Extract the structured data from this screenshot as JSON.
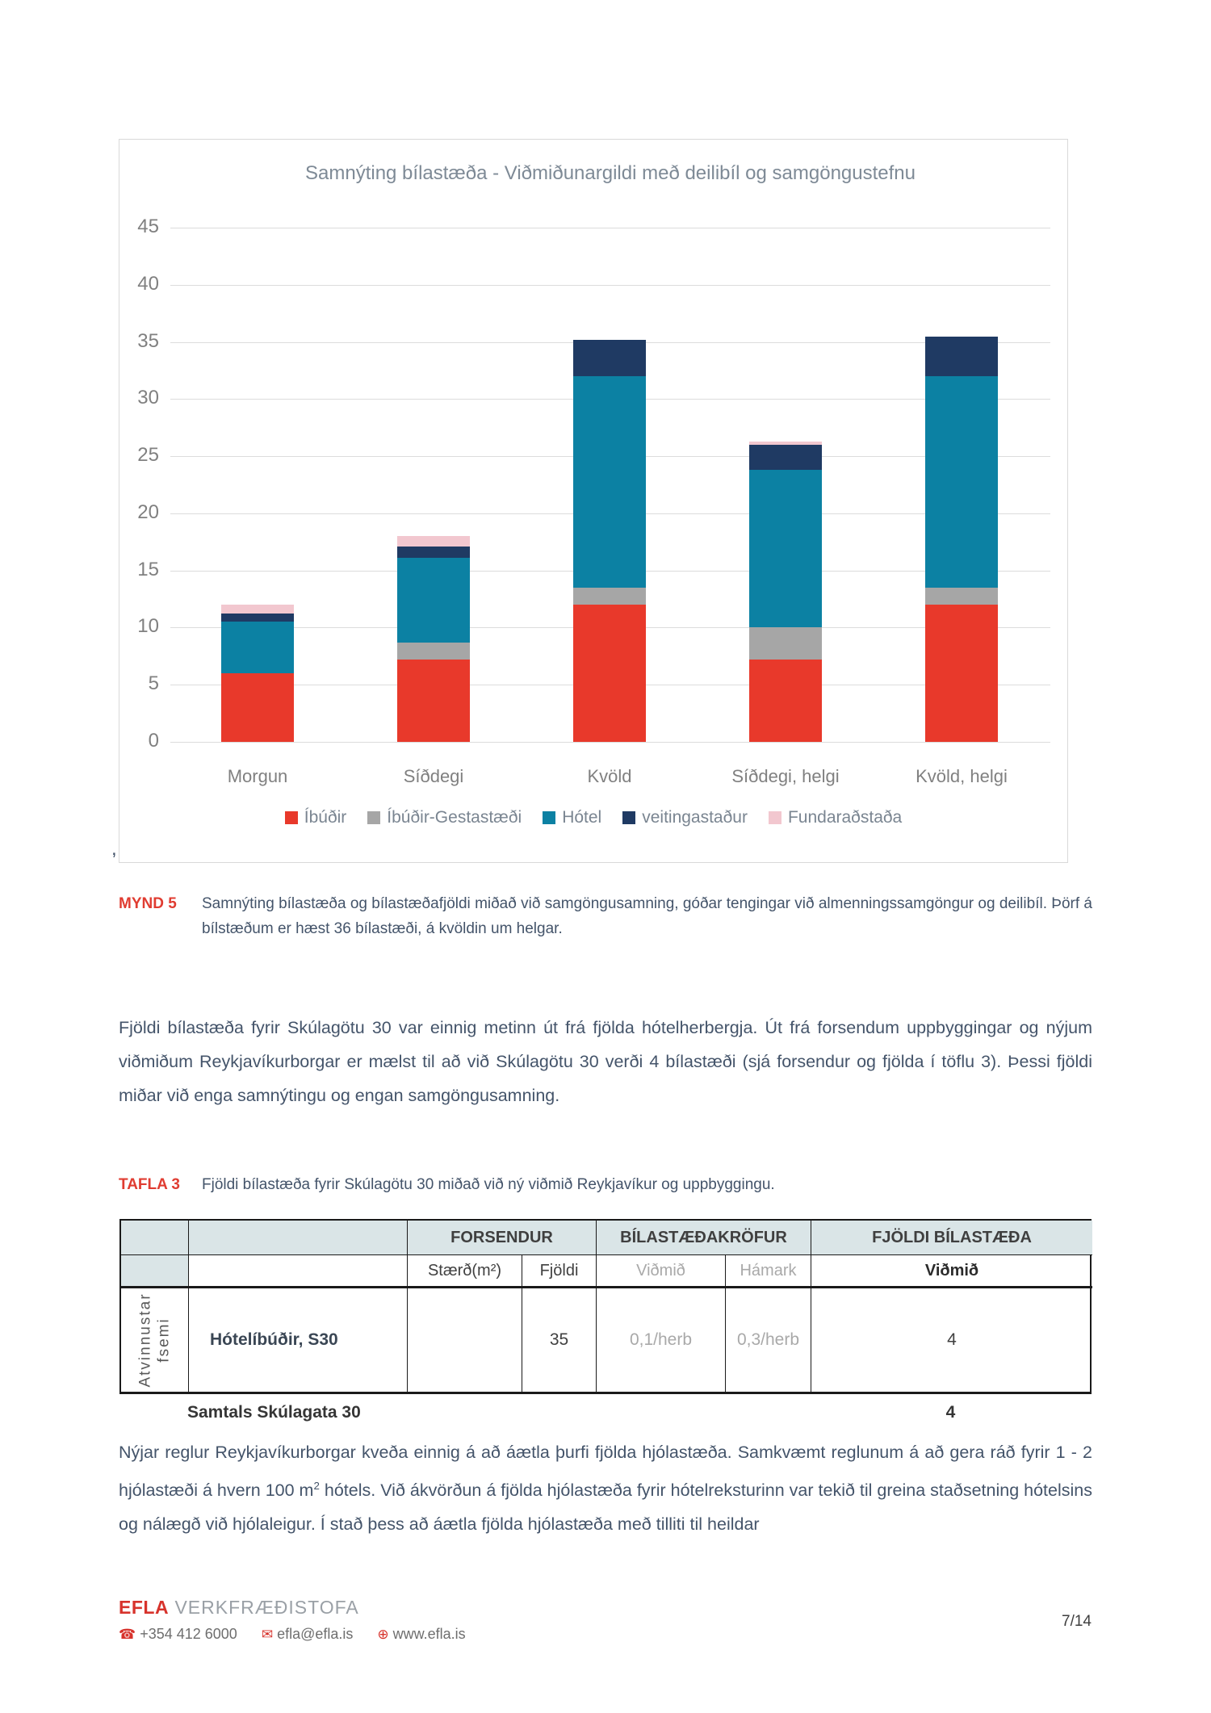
{
  "chart_data": {
    "type": "bar",
    "stacked": true,
    "title": "Samnýting bílastæða - Viðmiðunargildi með deilibíl og samgöngustefnu",
    "categories": [
      "Morgun",
      "Síðdegi",
      "Kvöld",
      "Síðdegi, helgi",
      "Kvöld, helgi"
    ],
    "series": [
      {
        "name": "Íbúðir",
        "color": "#E8392B",
        "values": [
          6.0,
          7.2,
          12.0,
          7.2,
          12.0
        ]
      },
      {
        "name": "Íbúðir-Gestastæði",
        "color": "#A6A6A6",
        "values": [
          0.0,
          1.5,
          1.5,
          2.8,
          1.5
        ]
      },
      {
        "name": "Hótel",
        "color": "#0C81A3",
        "values": [
          4.5,
          7.4,
          18.5,
          13.8,
          18.5
        ]
      },
      {
        "name": "veitingastaður",
        "color": "#1F3A63",
        "values": [
          0.7,
          1.0,
          3.2,
          2.2,
          3.5
        ]
      },
      {
        "name": "Fundaraðstaða",
        "color": "#F2C7CF",
        "values": [
          0.8,
          0.9,
          0.0,
          0.3,
          0.0
        ]
      }
    ],
    "totals": [
      12.0,
      18.0,
      35.2,
      26.3,
      35.5
    ],
    "xlabel": "",
    "ylabel": "",
    "ylim": [
      0,
      45
    ],
    "ytick_step": 5,
    "grid": true,
    "legend_position": "bottom"
  },
  "stray_comma": ",",
  "figure_caption": {
    "label": "MYND 5",
    "text": "Samnýting bílastæða og bílastæðafjöldi miðað við samgöngusamning, góðar tengingar við almenningssamgöngur og deilibíl. Þörf á bílstæðum er hæst 36 bílastæði, á kvöldin um helgar."
  },
  "paragraph1": "Fjöldi bílastæða fyrir Skúlagötu 30 var einnig metinn út frá fjölda hótelherbergja. Út frá forsendum uppbyggingar og nýjum viðmiðum Reykjavíkurborgar er mælst til  að við Skúlagötu 30 verði 4 bílastæði (sjá forsendur og fjölda í töflu 3). Þessi fjöldi miðar við enga samnýtingu og engan samgöngusamning.",
  "table_caption": {
    "label": "TAFLA 3",
    "text": "Fjöldi bílastæða fyrir Skúlagötu 30 miðað við ný viðmið Reykjavíkur og uppbyggingu."
  },
  "table": {
    "group_headers": {
      "forsendur": "FORSENDUR",
      "bilastaedakrofur": "BÍLASTÆÐAKRÖFUR",
      "fjoldi_bilastaeda": "FJÖLDI BÍLASTÆÐA"
    },
    "sub_headers": {
      "staerd": "Stærð(m²)",
      "fjoldi": "Fjöldi",
      "vidmid": "Viðmið",
      "hamark": "Hámark",
      "vidmid2": "Viðmið"
    },
    "row_group_label_line1": "Atvinnustar",
    "row_group_label_line2": "fsemi",
    "rows": [
      {
        "name": "Hótelíbúðir, S30",
        "staerd": "",
        "fjoldi": "35",
        "vidmid": "0,1/herb",
        "hamark": "0,3/herb",
        "fjoldi_bilastaeda": "4"
      }
    ],
    "total_label": "Samtals Skúlagata 30",
    "total_value": "4"
  },
  "paragraph2": {
    "part1": "Nýjar reglur Reykjavíkurborgar kveða einnig á að áætla þurfi fjölda hjólastæða. Samkvæmt reglunum á að gera ráð fyrir 1 - 2 hjólastæði á hvern 100 m",
    "sup": "2",
    "part2": " hótels. Við ákvörðun á fjölda hjólastæða fyrir hótelreksturinn var tekið til greina staðsetning hótelsins og nálægð við hjólaleigur. Í stað þess að áætla fjölda hjólastæða með tilliti til heildar"
  },
  "footer": {
    "brand": "EFLA",
    "brand_rest": " VERKFRÆÐISTOFA",
    "phone_icon": "☎",
    "phone": "+354 412 6000",
    "email_icon": "✉",
    "email": "efla@efla.is",
    "web_icon": "⊕",
    "web": "www.efla.is",
    "page_number": "7/14"
  }
}
